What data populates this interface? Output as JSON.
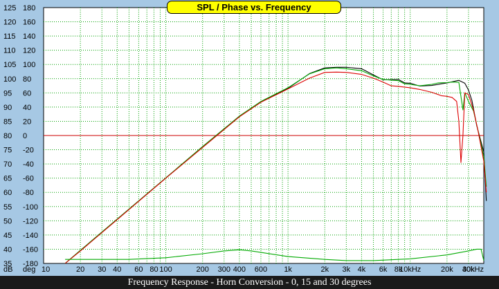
{
  "chart_data": {
    "type": "line",
    "title": "SPL / Phase vs. Frequency",
    "caption": "Frequency Response - Horn Conversion - 0, 15 and 30 degrees",
    "spl_unit": "dB",
    "phase_unit": "deg",
    "x_scale": "log",
    "xlim": [
      10,
      40000
    ],
    "x_ticks": [
      {
        "v": 10,
        "label": "10"
      },
      {
        "v": 20,
        "label": "20"
      },
      {
        "v": 30,
        "label": "30"
      },
      {
        "v": 40,
        "label": "40"
      },
      {
        "v": 60,
        "label": "60"
      },
      {
        "v": 80,
        "label": "80"
      },
      {
        "v": 100,
        "label": "100"
      },
      {
        "v": 200,
        "label": "200"
      },
      {
        "v": 300,
        "label": "300"
      },
      {
        "v": 400,
        "label": "400"
      },
      {
        "v": 600,
        "label": "600"
      },
      {
        "v": 1000,
        "label": "1k"
      },
      {
        "v": 2000,
        "label": "2k"
      },
      {
        "v": 3000,
        "label": "3k"
      },
      {
        "v": 4000,
        "label": "4k"
      },
      {
        "v": 6000,
        "label": "6k"
      },
      {
        "v": 8000,
        "label": "8k"
      },
      {
        "v": 10000,
        "label": "10kHz"
      },
      {
        "v": 20000,
        "label": "20k"
      },
      {
        "v": 30000,
        "label": "30k"
      },
      {
        "v": 40000,
        "label": "40kHz"
      }
    ],
    "spl_ylim": [
      35,
      125
    ],
    "spl_ticks": [
      "125",
      "120",
      "115",
      "110",
      "105",
      "100",
      "95",
      "90",
      "85",
      "80",
      "75",
      "70",
      "65",
      "60",
      "55",
      "50",
      "45",
      "40",
      "35"
    ],
    "phase_ylim": [
      -180,
      180
    ],
    "phase_ticks": [
      "180",
      "160",
      "140",
      "120",
      "100",
      "80",
      "60",
      "40",
      "20",
      "0",
      "-20",
      "-40",
      "-60",
      "-80",
      "-100",
      "-120",
      "-140",
      "-160",
      "-180"
    ],
    "grid": true,
    "reference_line": {
      "axis": "phase",
      "value": 0,
      "color": "#cc0000"
    },
    "series": [
      {
        "color": "#000000",
        "points": [
          [
            15,
            35
          ],
          [
            20,
            39.6
          ],
          [
            40,
            50.6
          ],
          [
            100,
            65.1
          ],
          [
            200,
            76.1
          ],
          [
            400,
            86.8
          ],
          [
            600,
            91.9
          ],
          [
            1000,
            96.6
          ],
          [
            1500,
            101.8
          ],
          [
            2000,
            103.8
          ],
          [
            2500,
            104
          ],
          [
            3000,
            104
          ],
          [
            4000,
            103.5
          ],
          [
            5000,
            101.3
          ],
          [
            6000,
            99.6
          ],
          [
            8000,
            99.7
          ],
          [
            9000,
            98.5
          ],
          [
            10000,
            98.4
          ],
          [
            12000,
            97.4
          ],
          [
            15000,
            97.6
          ],
          [
            20000,
            98.5
          ],
          [
            25000,
            99.4
          ],
          [
            28000,
            98.4
          ],
          [
            30000,
            96
          ],
          [
            32000,
            92.3
          ],
          [
            35000,
            83.5
          ],
          [
            40000,
            74.2
          ],
          [
            42000,
            57
          ]
        ]
      },
      {
        "color": "#00aa00",
        "points": [
          [
            15,
            35
          ],
          [
            20,
            39.6
          ],
          [
            40,
            50.6
          ],
          [
            100,
            65.1
          ],
          [
            200,
            76.1
          ],
          [
            400,
            86.8
          ],
          [
            600,
            92
          ],
          [
            1000,
            96.8
          ],
          [
            1500,
            101.7
          ],
          [
            2000,
            103.5
          ],
          [
            2500,
            103.8
          ],
          [
            3000,
            103.5
          ],
          [
            4000,
            102.8
          ],
          [
            5000,
            101
          ],
          [
            6000,
            99.7
          ],
          [
            8000,
            99.3
          ],
          [
            9000,
            98.2
          ],
          [
            10000,
            98
          ],
          [
            12000,
            97.5
          ],
          [
            15000,
            98
          ],
          [
            17000,
            98.5
          ],
          [
            20000,
            98.6
          ],
          [
            22000,
            98.8
          ],
          [
            25000,
            98.7
          ],
          [
            27000,
            89
          ],
          [
            28000,
            95
          ],
          [
            30000,
            92
          ],
          [
            33000,
            88.6
          ],
          [
            36000,
            81.5
          ],
          [
            40000,
            72.5
          ],
          [
            42000,
            62
          ]
        ]
      },
      {
        "color": "#dd0000",
        "points": [
          [
            15,
            35
          ],
          [
            20,
            39.4
          ],
          [
            40,
            50.4
          ],
          [
            100,
            65
          ],
          [
            200,
            75.8
          ],
          [
            400,
            86.6
          ],
          [
            600,
            91.7
          ],
          [
            1000,
            96.4
          ],
          [
            1500,
            100.2
          ],
          [
            2000,
            102.2
          ],
          [
            2500,
            102.3
          ],
          [
            3000,
            102.2
          ],
          [
            4000,
            101.5
          ],
          [
            5000,
            100.2
          ],
          [
            6000,
            98.8
          ],
          [
            7000,
            97.5
          ],
          [
            8000,
            97.3
          ],
          [
            10000,
            96.8
          ],
          [
            12000,
            96.2
          ],
          [
            15000,
            95.2
          ],
          [
            18000,
            94
          ],
          [
            20000,
            93.8
          ],
          [
            22000,
            93.4
          ],
          [
            24000,
            92
          ],
          [
            25000,
            85
          ],
          [
            26000,
            70.5
          ],
          [
            27000,
            80
          ],
          [
            28000,
            95
          ],
          [
            30000,
            94.4
          ],
          [
            33000,
            89
          ],
          [
            36000,
            81.4
          ],
          [
            40000,
            71
          ],
          [
            42000,
            60
          ]
        ]
      },
      {
        "color": "#00aa00",
        "points": [
          [
            15,
            36.4
          ],
          [
            50,
            36.4
          ],
          [
            100,
            37
          ],
          [
            200,
            38.4
          ],
          [
            300,
            39.4
          ],
          [
            400,
            39.8
          ],
          [
            500,
            39.4
          ],
          [
            1000,
            37.4
          ],
          [
            2000,
            36.4
          ],
          [
            3000,
            36
          ],
          [
            5000,
            36
          ],
          [
            8000,
            36.4
          ],
          [
            10000,
            36.6
          ],
          [
            20000,
            38
          ],
          [
            30000,
            39.4
          ],
          [
            35000,
            40
          ],
          [
            38000,
            40
          ],
          [
            40000,
            36
          ]
        ]
      }
    ]
  }
}
